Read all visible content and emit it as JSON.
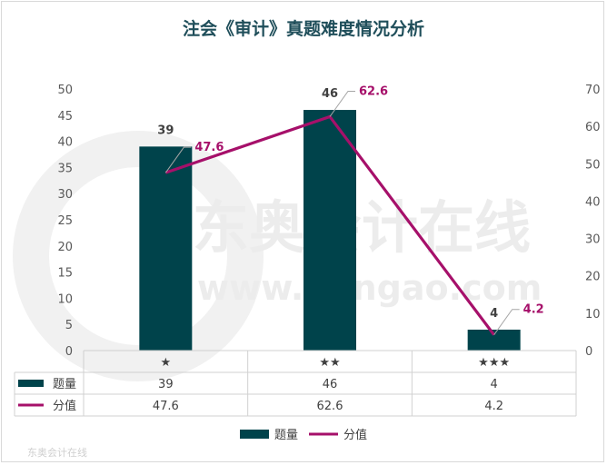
{
  "chart_data": {
    "type": "bar",
    "title": "注会《审计》真题难度情况分析",
    "categories": [
      "★",
      "★★",
      "★★★"
    ],
    "series": [
      {
        "name": "题量",
        "type": "bar",
        "axis": "left",
        "values": [
          39,
          46,
          4
        ]
      },
      {
        "name": "分值",
        "type": "line",
        "axis": "right",
        "values": [
          47.6,
          62.6,
          4.2
        ]
      }
    ],
    "ylim_left": [
      0,
      50
    ],
    "yticks_left": [
      0,
      5,
      10,
      15,
      20,
      25,
      30,
      35,
      40,
      45,
      50
    ],
    "ylim_right": [
      0,
      70
    ],
    "yticks_right": [
      0,
      10,
      20,
      30,
      40,
      50,
      60,
      70
    ],
    "data_table": true,
    "legend_position": "bottom",
    "grid": false
  },
  "colors": {
    "bar": "#00434b",
    "line": "#a6106a",
    "title": "#1f4e5a",
    "table_border": "#d0d0d0"
  },
  "watermark": {
    "brand": "东奥会计在线",
    "url": "www.dongao.com",
    "corner": "东奥会计在线"
  }
}
